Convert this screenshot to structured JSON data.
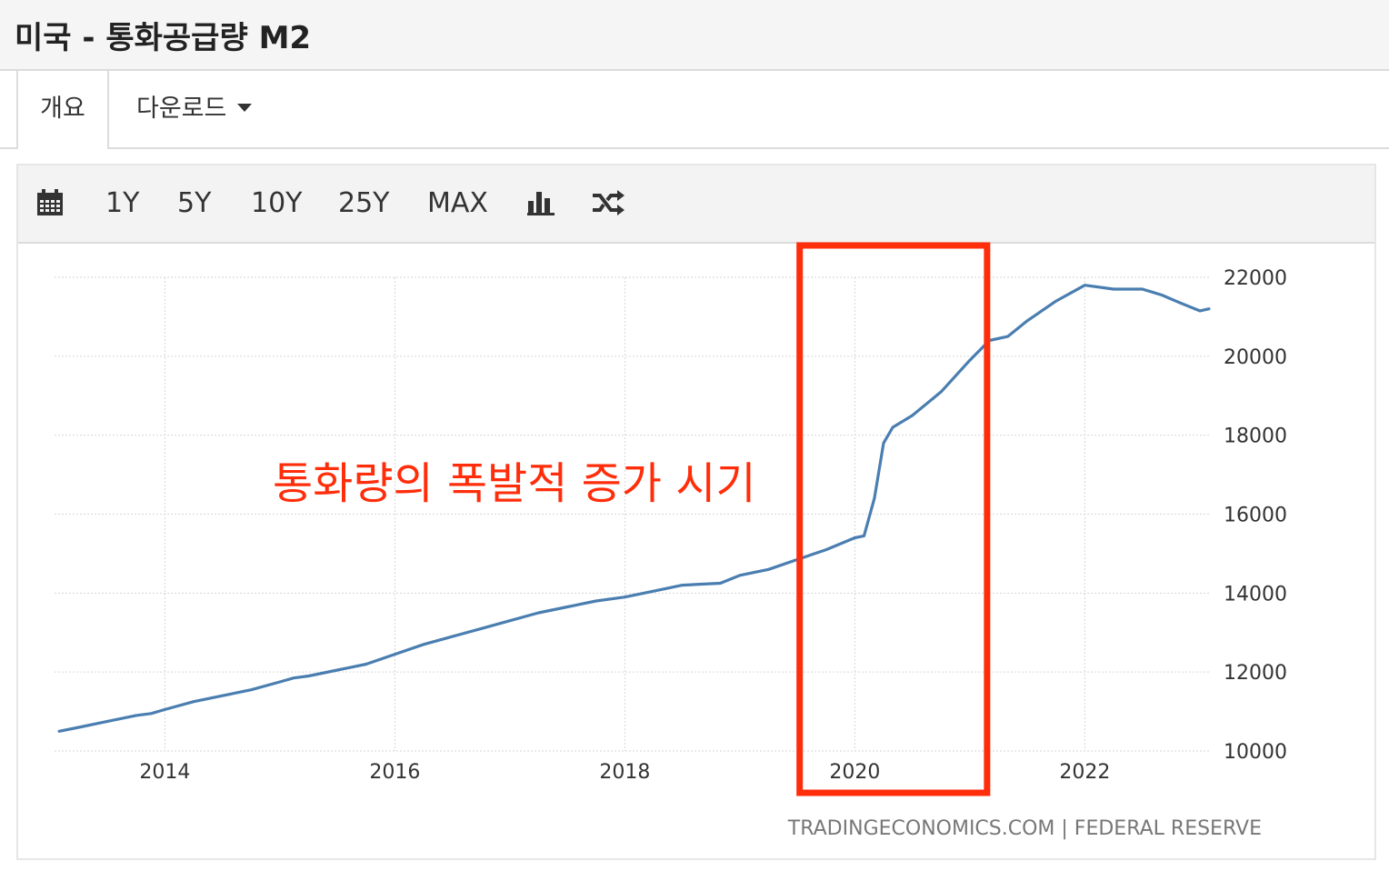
{
  "header": {
    "title": "미국 - 통화공급량 M2"
  },
  "tabs": [
    {
      "label": "개요",
      "active": true
    },
    {
      "label": "다운로드",
      "dropdown": true
    }
  ],
  "toolbar": {
    "calendar_icon": "calendar-icon",
    "ranges": [
      "1Y",
      "5Y",
      "10Y",
      "25Y",
      "MAX"
    ],
    "bar_chart_icon": "bar-chart-icon",
    "shuffle_icon": "shuffle-icon"
  },
  "colors": {
    "line": "#4a7eb0",
    "highlight": "#ff2d0a",
    "annotation": "#ff2d0a",
    "grid": "#d6d6d6"
  },
  "chart_data": {
    "type": "line",
    "title": "",
    "xlabel": "",
    "ylabel": "",
    "xlim": [
      2013.04,
      2023.08
    ],
    "ylim": [
      10000,
      22000
    ],
    "x_ticks": [
      "2014",
      "2016",
      "2018",
      "2020",
      "2022"
    ],
    "y_ticks": [
      "10000",
      "12000",
      "14000",
      "16000",
      "18000",
      "20000",
      "22000"
    ],
    "y_axis_position": "right",
    "grid": true,
    "series": [
      {
        "name": "",
        "x": [
          2013.08,
          2013.25,
          2013.5,
          2013.75,
          2013.88,
          2014.0,
          2014.25,
          2014.5,
          2014.75,
          2015.0,
          2015.12,
          2015.25,
          2015.5,
          2015.75,
          2016.0,
          2016.25,
          2016.5,
          2016.75,
          2017.0,
          2017.25,
          2017.5,
          2017.75,
          2018.0,
          2018.25,
          2018.5,
          2018.83,
          2019.0,
          2019.25,
          2019.5,
          2019.75,
          2020.0,
          2020.08,
          2020.17,
          2020.25,
          2020.33,
          2020.5,
          2020.75,
          2021.0,
          2021.17,
          2021.33,
          2021.5,
          2021.75,
          2022.0,
          2022.25,
          2022.5,
          2022.67,
          2022.83,
          2023.0,
          2023.08
        ],
        "values": [
          10500,
          10600,
          10750,
          10900,
          10950,
          11050,
          11250,
          11400,
          11550,
          11750,
          11850,
          11900,
          12050,
          12200,
          12450,
          12700,
          12900,
          13100,
          13300,
          13500,
          13650,
          13800,
          13900,
          14050,
          14200,
          14250,
          14450,
          14600,
          14850,
          15100,
          15400,
          15450,
          16400,
          17800,
          18200,
          18500,
          19100,
          19900,
          20400,
          20500,
          20900,
          21400,
          21800,
          21700,
          21700,
          21550,
          21350,
          21150,
          21200
        ]
      }
    ],
    "highlight_region": {
      "x_start": 2019.52,
      "x_end": 2021.15
    },
    "annotations": [
      {
        "text": "통화량의 폭발적 증가 시기"
      }
    ],
    "source": "TRADINGECONOMICS.COM  |  FEDERAL RESERVE"
  }
}
